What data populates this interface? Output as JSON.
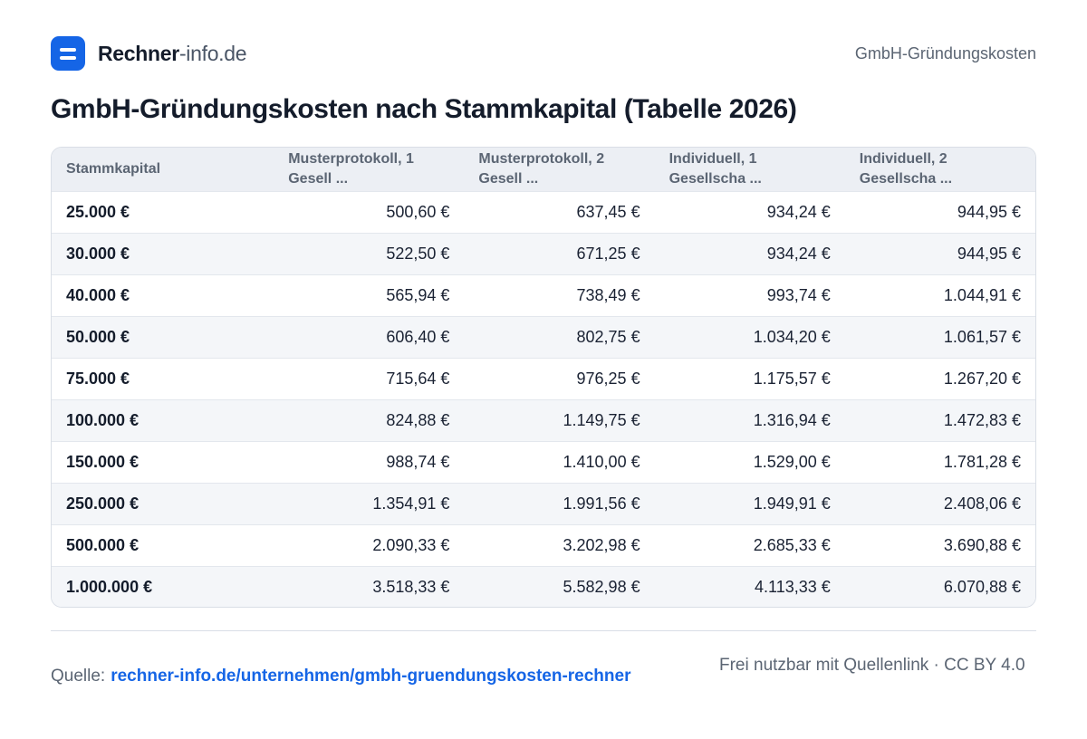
{
  "header": {
    "brand_strong": "Rechner",
    "brand_light": "-info.de",
    "right_label": "GmbH-Gründungskosten"
  },
  "title": "GmbH-Gründungskosten nach Stammkapital (Tabelle 2026)",
  "table": {
    "columns": [
      "Stammkapital",
      "Musterprotokoll, 1 Gesell ...",
      "Musterprotokoll, 2 Gesell ...",
      "Individuell, 1 Gesellscha ...",
      "Individuell, 2 Gesellscha ..."
    ],
    "rows": [
      [
        "25.000 €",
        "500,60 €",
        "637,45 €",
        "934,24 €",
        "944,95 €"
      ],
      [
        "30.000 €",
        "522,50 €",
        "671,25 €",
        "934,24 €",
        "944,95 €"
      ],
      [
        "40.000 €",
        "565,94 €",
        "738,49 €",
        "993,74 €",
        "1.044,91 €"
      ],
      [
        "50.000 €",
        "606,40 €",
        "802,75 €",
        "1.034,20 €",
        "1.061,57 €"
      ],
      [
        "75.000 €",
        "715,64 €",
        "976,25 €",
        "1.175,57 €",
        "1.267,20 €"
      ],
      [
        "100.000 €",
        "824,88 €",
        "1.149,75 €",
        "1.316,94 €",
        "1.472,83 €"
      ],
      [
        "150.000 €",
        "988,74 €",
        "1.410,00 €",
        "1.529,00 €",
        "1.781,28 €"
      ],
      [
        "250.000 €",
        "1.354,91 €",
        "1.991,56 €",
        "1.949,91 €",
        "2.408,06 €"
      ],
      [
        "500.000 €",
        "2.090,33 €",
        "3.202,98 €",
        "2.685,33 €",
        "3.690,88 €"
      ],
      [
        "1.000.000 €",
        "3.518,33 €",
        "5.582,98 €",
        "4.113,33 €",
        "6.070,88 €"
      ]
    ]
  },
  "footer": {
    "source_label": "Quelle:",
    "source_link": "rechner-info.de/unternehmen/gmbh-gruendungskosten-rechner",
    "license": "Frei nutzbar mit Quellenlink · CC BY 4.0"
  },
  "colors": {
    "accent": "#1565e6",
    "header_bg": "#eceff4",
    "row_alt": "#f4f6f9"
  }
}
